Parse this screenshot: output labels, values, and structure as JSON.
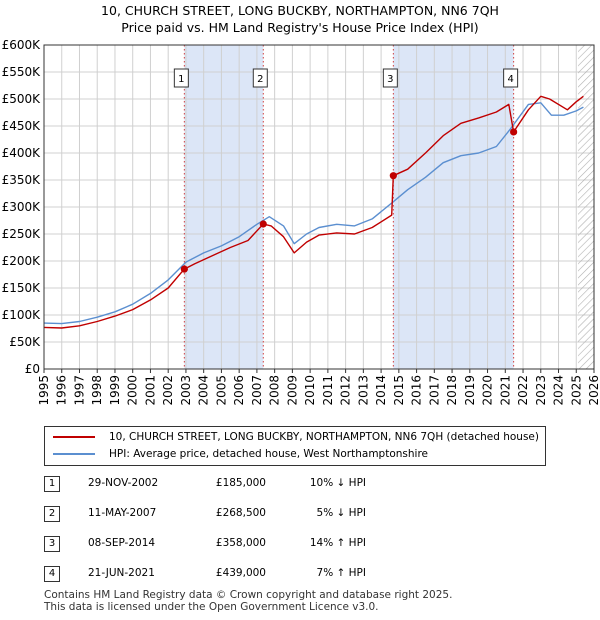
{
  "header": {
    "title_line1": "10, CHURCH STREET, LONG BUCKBY, NORTHAMPTON, NN6 7QH",
    "title_line2": "Price paid vs. HM Land Registry's House Price Index (HPI)"
  },
  "colors": {
    "property": "#c00000",
    "hpi": "#5b8fd0",
    "shade": "#dce6f7",
    "grid": "#d0d0d0"
  },
  "chart_data": {
    "type": "line",
    "x_range": [
      1995,
      2026
    ],
    "x_ticks": [
      "1995",
      "1996",
      "1997",
      "1998",
      "1999",
      "2000",
      "2001",
      "2002",
      "2003",
      "2004",
      "2005",
      "2006",
      "2007",
      "2008",
      "2009",
      "2010",
      "2011",
      "2012",
      "2013",
      "2014",
      "2015",
      "2016",
      "2017",
      "2018",
      "2019",
      "2020",
      "2021",
      "2022",
      "2023",
      "2024",
      "2025",
      "2026"
    ],
    "y_range": [
      0,
      600000
    ],
    "y_ticks": [
      {
        "value": 0,
        "label": "£0"
      },
      {
        "value": 50000,
        "label": "£50K"
      },
      {
        "value": 100000,
        "label": "£100K"
      },
      {
        "value": 150000,
        "label": "£150K"
      },
      {
        "value": 200000,
        "label": "£200K"
      },
      {
        "value": 250000,
        "label": "£250K"
      },
      {
        "value": 300000,
        "label": "£300K"
      },
      {
        "value": 350000,
        "label": "£350K"
      },
      {
        "value": 400000,
        "label": "£400K"
      },
      {
        "value": 450000,
        "label": "£450K"
      },
      {
        "value": 500000,
        "label": "£500K"
      },
      {
        "value": 550000,
        "label": "£550K"
      },
      {
        "value": 600000,
        "label": "£600K"
      }
    ],
    "shaded_periods": [
      [
        2002.91,
        2007.36
      ],
      [
        2014.69,
        2021.47
      ]
    ],
    "future_hatch_from": 2025.1,
    "series": [
      {
        "name": "10, CHURCH STREET, LONG BUCKBY, NORTHAMPTON, NN6 7QH (detached house)",
        "color": "#c00000",
        "points": [
          [
            1995,
            77000
          ],
          [
            1996,
            76000
          ],
          [
            1997,
            80000
          ],
          [
            1998,
            88000
          ],
          [
            1999,
            98000
          ],
          [
            2000,
            110000
          ],
          [
            2001,
            128000
          ],
          [
            2002,
            150000
          ],
          [
            2002.91,
            185000
          ],
          [
            2003.5,
            195000
          ],
          [
            2004.5,
            210000
          ],
          [
            2005.5,
            225000
          ],
          [
            2006.5,
            238000
          ],
          [
            2007.36,
            268500
          ],
          [
            2007.8,
            265000
          ],
          [
            2008.5,
            245000
          ],
          [
            2009.1,
            215000
          ],
          [
            2009.8,
            235000
          ],
          [
            2010.5,
            248000
          ],
          [
            2011.5,
            252000
          ],
          [
            2012.5,
            250000
          ],
          [
            2013.5,
            262000
          ],
          [
            2014.6,
            285000
          ],
          [
            2014.69,
            358000
          ],
          [
            2015.5,
            370000
          ],
          [
            2016.5,
            400000
          ],
          [
            2017.5,
            432000
          ],
          [
            2018.5,
            455000
          ],
          [
            2019.5,
            465000
          ],
          [
            2020.5,
            476000
          ],
          [
            2021.2,
            490000
          ],
          [
            2021.47,
            439000
          ],
          [
            2022.3,
            480000
          ],
          [
            2023.0,
            505000
          ],
          [
            2023.5,
            500000
          ],
          [
            2024.5,
            480000
          ],
          [
            2025.0,
            495000
          ],
          [
            2025.4,
            505000
          ]
        ]
      },
      {
        "name": "HPI: Average price, detached house, West Northamptonshire",
        "color": "#5b8fd0",
        "points": [
          [
            1995,
            85000
          ],
          [
            1996,
            84000
          ],
          [
            1997,
            88000
          ],
          [
            1998,
            96000
          ],
          [
            1999,
            106000
          ],
          [
            2000,
            120000
          ],
          [
            2001,
            140000
          ],
          [
            2002,
            165000
          ],
          [
            2003,
            198000
          ],
          [
            2004,
            215000
          ],
          [
            2005,
            228000
          ],
          [
            2006,
            245000
          ],
          [
            2007,
            268000
          ],
          [
            2007.7,
            282000
          ],
          [
            2008.5,
            265000
          ],
          [
            2009.1,
            232000
          ],
          [
            2009.8,
            250000
          ],
          [
            2010.5,
            262000
          ],
          [
            2011.5,
            268000
          ],
          [
            2012.5,
            265000
          ],
          [
            2013.5,
            278000
          ],
          [
            2014.7,
            310000
          ],
          [
            2015.5,
            332000
          ],
          [
            2016.5,
            355000
          ],
          [
            2017.5,
            382000
          ],
          [
            2018.5,
            395000
          ],
          [
            2019.5,
            400000
          ],
          [
            2020.5,
            412000
          ],
          [
            2021.3,
            445000
          ],
          [
            2022.3,
            490000
          ],
          [
            2023.0,
            493000
          ],
          [
            2023.6,
            470000
          ],
          [
            2024.3,
            470000
          ],
          [
            2025.0,
            478000
          ],
          [
            2025.4,
            485000
          ]
        ]
      }
    ],
    "sales": [
      {
        "label": "1",
        "x": 2002.91,
        "price": 185000
      },
      {
        "label": "2",
        "x": 2007.36,
        "price": 268500
      },
      {
        "label": "3",
        "x": 2014.69,
        "price": 358000
      },
      {
        "label": "4",
        "x": 2021.47,
        "price": 439000
      }
    ]
  },
  "legend": {
    "property_label": "10, CHURCH STREET, LONG BUCKBY, NORTHAMPTON, NN6 7QH (detached house)",
    "hpi_label": "HPI: Average price, detached house, West Northamptonshire"
  },
  "sales_table": [
    {
      "num": "1",
      "date": "29-NOV-2002",
      "price": "£185,000",
      "hpi": "10% ↓ HPI"
    },
    {
      "num": "2",
      "date": "11-MAY-2007",
      "price": "£268,500",
      "hpi": "5% ↓ HPI"
    },
    {
      "num": "3",
      "date": "08-SEP-2014",
      "price": "£358,000",
      "hpi": "14% ↑ HPI"
    },
    {
      "num": "4",
      "date": "21-JUN-2021",
      "price": "£439,000",
      "hpi": "7% ↑ HPI"
    }
  ],
  "footer": {
    "line1": "Contains HM Land Registry data © Crown copyright and database right 2025.",
    "line2": "This data is licensed under the Open Government Licence v3.0."
  }
}
